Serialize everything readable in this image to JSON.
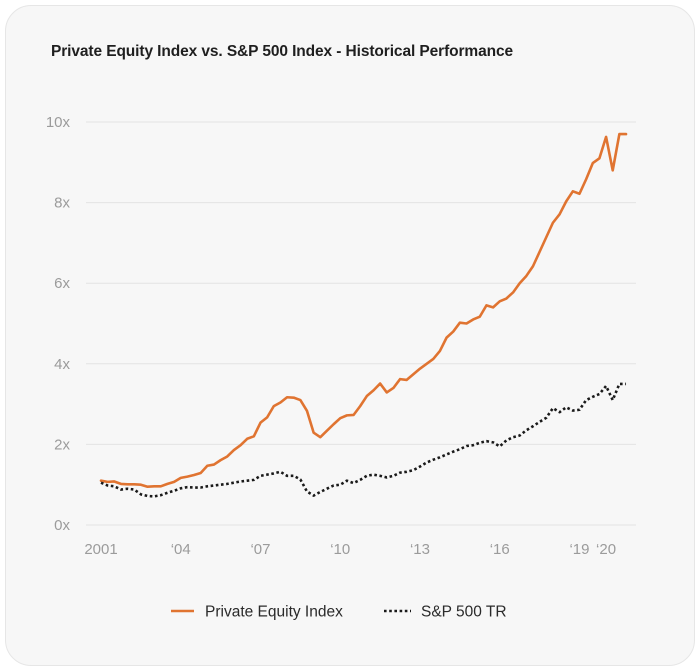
{
  "chart_data": {
    "type": "line",
    "title": "Private Equity Index vs. S&P 500 Index - Historical Performance",
    "xlabel": "",
    "ylabel": "",
    "xlim": [
      2001,
      2020.9
    ],
    "ylim": [
      0,
      10
    ],
    "y_ticks": [
      0,
      2,
      4,
      6,
      8,
      10
    ],
    "y_tick_labels": [
      "0x",
      "2x",
      "4x",
      "6x",
      "8x",
      "10x"
    ],
    "x_ticks": [
      2001,
      2004,
      2007,
      2010,
      2013,
      2016,
      2019,
      2020
    ],
    "x_tick_labels": [
      "2001",
      "‘04",
      "‘07",
      "‘10",
      "‘13",
      "‘16",
      "‘19",
      "‘20"
    ],
    "grid": true,
    "legend_position": "bottom",
    "colors": {
      "Private Equity Index": "#e07431",
      "S&P 500 TR": "#1a1a1a"
    },
    "series": [
      {
        "name": "Private Equity Index",
        "style": "solid",
        "x": [
          2001.0,
          2001.25,
          2001.5,
          2001.75,
          2002.0,
          2002.25,
          2002.5,
          2002.75,
          2003.0,
          2003.25,
          2003.5,
          2003.75,
          2004.0,
          2004.25,
          2004.5,
          2004.75,
          2005.0,
          2005.25,
          2005.5,
          2005.75,
          2006.0,
          2006.25,
          2006.5,
          2006.75,
          2007.0,
          2007.25,
          2007.5,
          2007.75,
          2008.0,
          2008.25,
          2008.5,
          2008.75,
          2009.0,
          2009.25,
          2009.5,
          2009.75,
          2010.0,
          2010.25,
          2010.5,
          2010.75,
          2011.0,
          2011.25,
          2011.5,
          2011.75,
          2012.0,
          2012.25,
          2012.5,
          2012.75,
          2013.0,
          2013.25,
          2013.5,
          2013.75,
          2014.0,
          2014.25,
          2014.5,
          2014.75,
          2015.0,
          2015.25,
          2015.5,
          2015.75,
          2016.0,
          2016.25,
          2016.5,
          2016.75,
          2017.0,
          2017.25,
          2017.5,
          2017.75,
          2018.0,
          2018.25,
          2018.5,
          2018.75,
          2019.0,
          2019.25,
          2019.5,
          2019.75,
          2020.0,
          2020.25,
          2020.5,
          2020.75
        ],
        "values": [
          1.1,
          1.07,
          1.08,
          1.02,
          1.01,
          1.01,
          1.0,
          0.95,
          0.96,
          0.96,
          1.02,
          1.07,
          1.17,
          1.2,
          1.24,
          1.29,
          1.47,
          1.5,
          1.61,
          1.7,
          1.86,
          1.98,
          2.14,
          2.2,
          2.54,
          2.67,
          2.95,
          3.04,
          3.17,
          3.16,
          3.1,
          2.83,
          2.29,
          2.18,
          2.34,
          2.5,
          2.65,
          2.72,
          2.73,
          2.95,
          3.2,
          3.34,
          3.51,
          3.29,
          3.4,
          3.62,
          3.6,
          3.74,
          3.88,
          4.0,
          4.12,
          4.32,
          4.65,
          4.8,
          5.02,
          5.0,
          5.1,
          5.17,
          5.45,
          5.4,
          5.55,
          5.62,
          5.77,
          6.0,
          6.18,
          6.42,
          6.78,
          7.14,
          7.5,
          7.71,
          8.03,
          8.28,
          8.22,
          8.58,
          8.98,
          9.1,
          9.63,
          8.8,
          9.7,
          9.7
        ]
      },
      {
        "name": "S&P 500 TR",
        "style": "dotted",
        "x": [
          2001.0,
          2001.25,
          2001.5,
          2001.75,
          2002.0,
          2002.25,
          2002.5,
          2002.75,
          2003.0,
          2003.25,
          2003.5,
          2003.75,
          2004.0,
          2004.25,
          2004.5,
          2004.75,
          2005.0,
          2005.25,
          2005.5,
          2005.75,
          2006.0,
          2006.25,
          2006.5,
          2006.75,
          2007.0,
          2007.25,
          2007.5,
          2007.75,
          2008.0,
          2008.25,
          2008.5,
          2008.75,
          2009.0,
          2009.25,
          2009.5,
          2009.75,
          2010.0,
          2010.25,
          2010.5,
          2010.75,
          2011.0,
          2011.25,
          2011.5,
          2011.75,
          2012.0,
          2012.25,
          2012.5,
          2012.75,
          2013.0,
          2013.25,
          2013.5,
          2013.75,
          2014.0,
          2014.25,
          2014.5,
          2014.75,
          2015.0,
          2015.25,
          2015.5,
          2015.75,
          2016.0,
          2016.25,
          2016.5,
          2016.75,
          2017.0,
          2017.25,
          2017.5,
          2017.75,
          2018.0,
          2018.25,
          2018.5,
          2018.75,
          2019.0,
          2019.25,
          2019.5,
          2019.75,
          2020.0,
          2020.25,
          2020.5,
          2020.75
        ],
        "values": [
          1.05,
          0.98,
          0.96,
          0.88,
          0.9,
          0.88,
          0.76,
          0.72,
          0.71,
          0.74,
          0.8,
          0.85,
          0.91,
          0.94,
          0.93,
          0.93,
          0.96,
          0.98,
          1.0,
          1.02,
          1.05,
          1.08,
          1.1,
          1.12,
          1.22,
          1.25,
          1.28,
          1.32,
          1.22,
          1.22,
          1.13,
          0.83,
          0.73,
          0.82,
          0.9,
          0.98,
          1.0,
          1.1,
          1.04,
          1.12,
          1.22,
          1.25,
          1.22,
          1.18,
          1.22,
          1.3,
          1.32,
          1.36,
          1.45,
          1.55,
          1.62,
          1.68,
          1.75,
          1.82,
          1.88,
          1.96,
          1.98,
          2.04,
          2.08,
          2.05,
          1.95,
          2.1,
          2.18,
          2.22,
          2.35,
          2.45,
          2.56,
          2.66,
          2.9,
          2.8,
          2.92,
          2.84,
          2.86,
          3.1,
          3.18,
          3.25,
          3.45,
          3.1,
          3.5,
          3.5
        ]
      }
    ]
  }
}
